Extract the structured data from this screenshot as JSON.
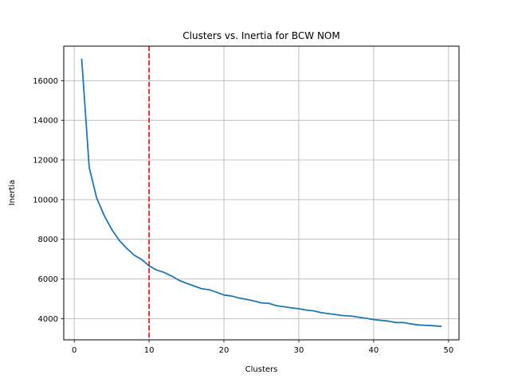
{
  "chart_data": {
    "type": "line",
    "title": "Clusters vs. Inertia for BCW NOM",
    "xlabel": "Clusters",
    "ylabel": "Inertia",
    "xlim": [
      -1.4,
      51.4
    ],
    "ylim": [
      2930,
      17740
    ],
    "xticks": [
      0,
      10,
      20,
      30,
      40,
      50
    ],
    "yticks": [
      4000,
      6000,
      8000,
      10000,
      12000,
      14000,
      16000
    ],
    "grid": true,
    "series": [
      {
        "color": "#1f77b4",
        "x": [
          1,
          2,
          3,
          4,
          5,
          6,
          7,
          8,
          9,
          10,
          11,
          12,
          13,
          14,
          15,
          16,
          17,
          18,
          19,
          20,
          21,
          22,
          23,
          24,
          25,
          26,
          27,
          28,
          29,
          30,
          31,
          32,
          33,
          34,
          35,
          36,
          37,
          38,
          39,
          40,
          41,
          42,
          43,
          44,
          45,
          46,
          47,
          48,
          49
        ],
        "y": [
          17080,
          11620,
          10080,
          9200,
          8500,
          7950,
          7550,
          7200,
          6980,
          6660,
          6450,
          6330,
          6150,
          5930,
          5780,
          5650,
          5510,
          5460,
          5330,
          5190,
          5140,
          5040,
          4970,
          4890,
          4790,
          4770,
          4650,
          4600,
          4540,
          4500,
          4430,
          4390,
          4300,
          4250,
          4200,
          4150,
          4130,
          4070,
          4020,
          3950,
          3910,
          3870,
          3800,
          3800,
          3730,
          3680,
          3660,
          3640,
          3610
        ]
      }
    ],
    "reference_line": {
      "axis": "x",
      "value": 10,
      "color": "#ff0000",
      "style": "dashed"
    }
  }
}
